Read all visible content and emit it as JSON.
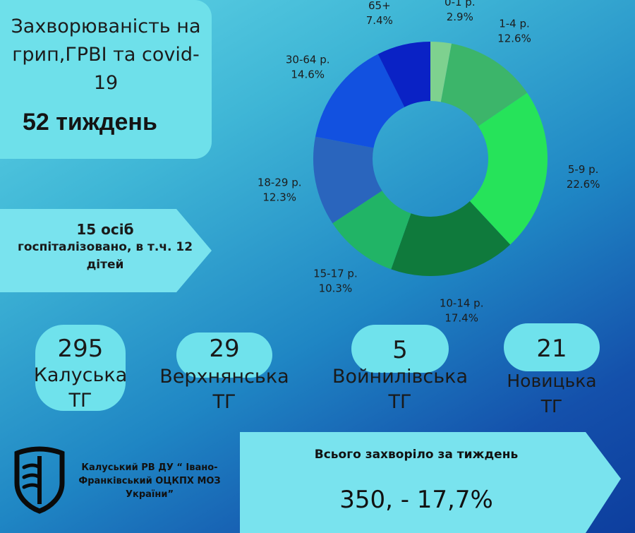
{
  "header": {
    "title": "Захворюваність на грип,ГРВІ та covid-19",
    "week": "52 тиждень"
  },
  "hospital": {
    "count_line": "15 осіб",
    "detail_line": "госпіталізовано, в т.ч. 12 дітей"
  },
  "communities": [
    {
      "value": "295",
      "name_line1": "Калуська",
      "name_line2": "ТГ"
    },
    {
      "value": "29",
      "name_line1": "Верхнянська",
      "name_line2": "ТГ"
    },
    {
      "value": "5",
      "name_line1": "Войнилівська",
      "name_line2": "ТГ"
    },
    {
      "value": "21",
      "name_line1": "Новицька",
      "name_line2": "ТГ"
    }
  ],
  "total": {
    "label": "Всього захворіло за тиждень",
    "value": "350, - 17,7%"
  },
  "organization": {
    "name": "Калуський РВ ДУ “ Івано-Франківський ОЦКПХ МОЗ України”"
  },
  "chart_data": {
    "type": "pie",
    "donut": true,
    "title": "",
    "categories": [
      "0-1 р.",
      "1-4 р.",
      "5-9 р.",
      "10-14 р.",
      "15-17 р.",
      "18-29 р.",
      "30-64 р.",
      "65+"
    ],
    "values": [
      2.9,
      12.6,
      22.6,
      17.4,
      10.3,
      12.3,
      14.6,
      7.4
    ],
    "value_labels": [
      "2.9%",
      "12.6%",
      "22.6%",
      "17.4%",
      "10.3%",
      "12.3%",
      "14.6%",
      "7.4%"
    ],
    "colors": [
      "#7ed18f",
      "#3cb56a",
      "#26e35a",
      "#0f7a3c",
      "#21b466",
      "#2a65bd",
      "#1251e0",
      "#0a22c5"
    ]
  }
}
